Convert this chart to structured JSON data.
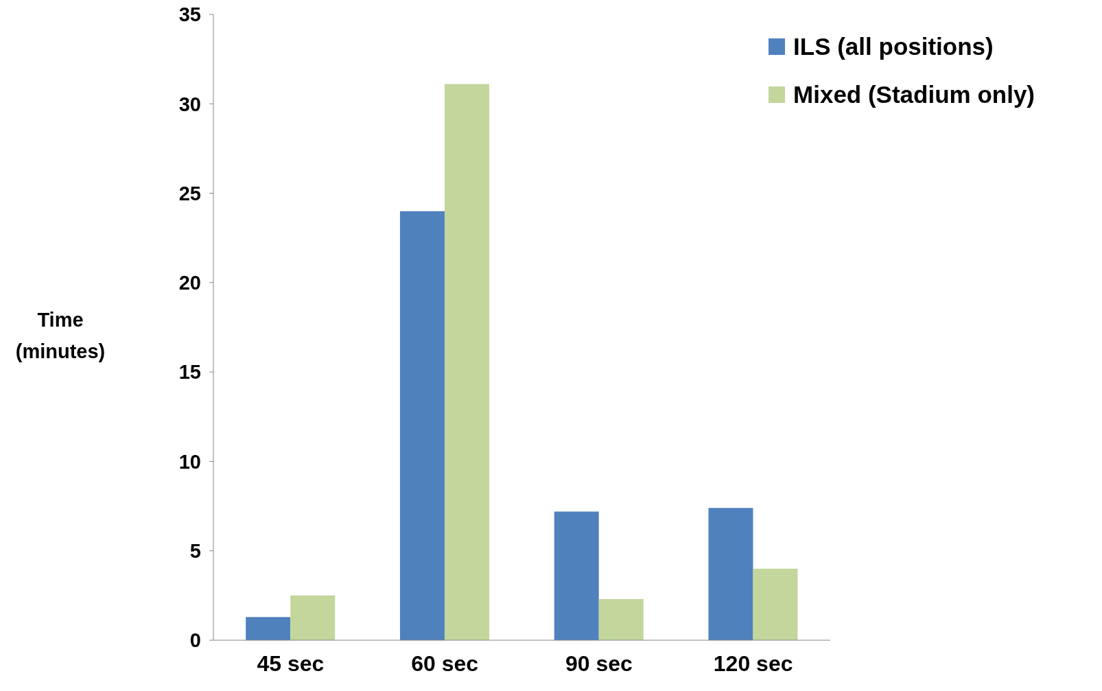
{
  "chart_data": {
    "type": "bar",
    "ylabel": "Time (minutes)",
    "categories": [
      "45 sec",
      "60 sec",
      "90 sec",
      "120 sec"
    ],
    "series": [
      {
        "name": "ILS (all positions)",
        "color": "#4f81bd",
        "values": [
          1.3,
          24,
          7.2,
          7.4
        ]
      },
      {
        "name": "Mixed (Stadium only)",
        "color": "#c3d69b",
        "values": [
          2.5,
          31.1,
          2.3,
          4.0
        ]
      }
    ],
    "ylim": [
      0,
      35
    ],
    "yticks": [
      0,
      5,
      10,
      15,
      20,
      25,
      30,
      35
    ],
    "grid": false,
    "legend": "top right"
  }
}
